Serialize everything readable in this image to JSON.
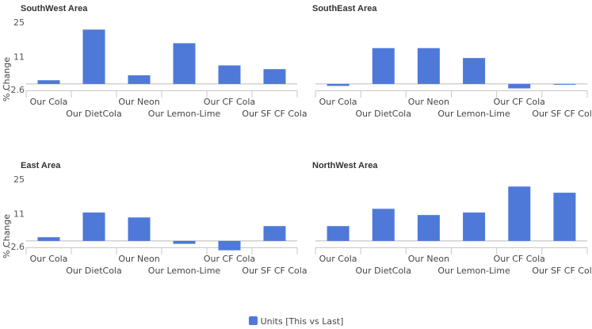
{
  "chart_data": {
    "type": "bar",
    "ylabel": "% Change",
    "yticks": [
      -2.6,
      11,
      25
    ],
    "ylim": [
      -2.6,
      25
    ],
    "categories": [
      "Our Cola",
      "Our DietCola",
      "Our Neon",
      "Our Lemon-Lime",
      "Our CF Cola",
      "Our SF CF Cola"
    ],
    "series_name": "Units [This vs Last]",
    "color": "#4e79d8",
    "panels": [
      {
        "title": "SouthWest Area",
        "values": [
          1.5,
          22,
          3.5,
          16.5,
          7.5,
          6
        ]
      },
      {
        "title": "SouthEast Area",
        "values": [
          -0.8,
          14.5,
          14.5,
          10.5,
          -1.8,
          -0.2
        ]
      },
      {
        "title": "East Area",
        "values": [
          1.5,
          11.5,
          9.5,
          -1.2,
          -3.8,
          6
        ]
      },
      {
        "title": "NorthWest Area",
        "values": [
          6,
          13,
          10.5,
          11.5,
          22,
          19.5
        ]
      }
    ],
    "legend": {
      "position": "bottom-center"
    }
  }
}
